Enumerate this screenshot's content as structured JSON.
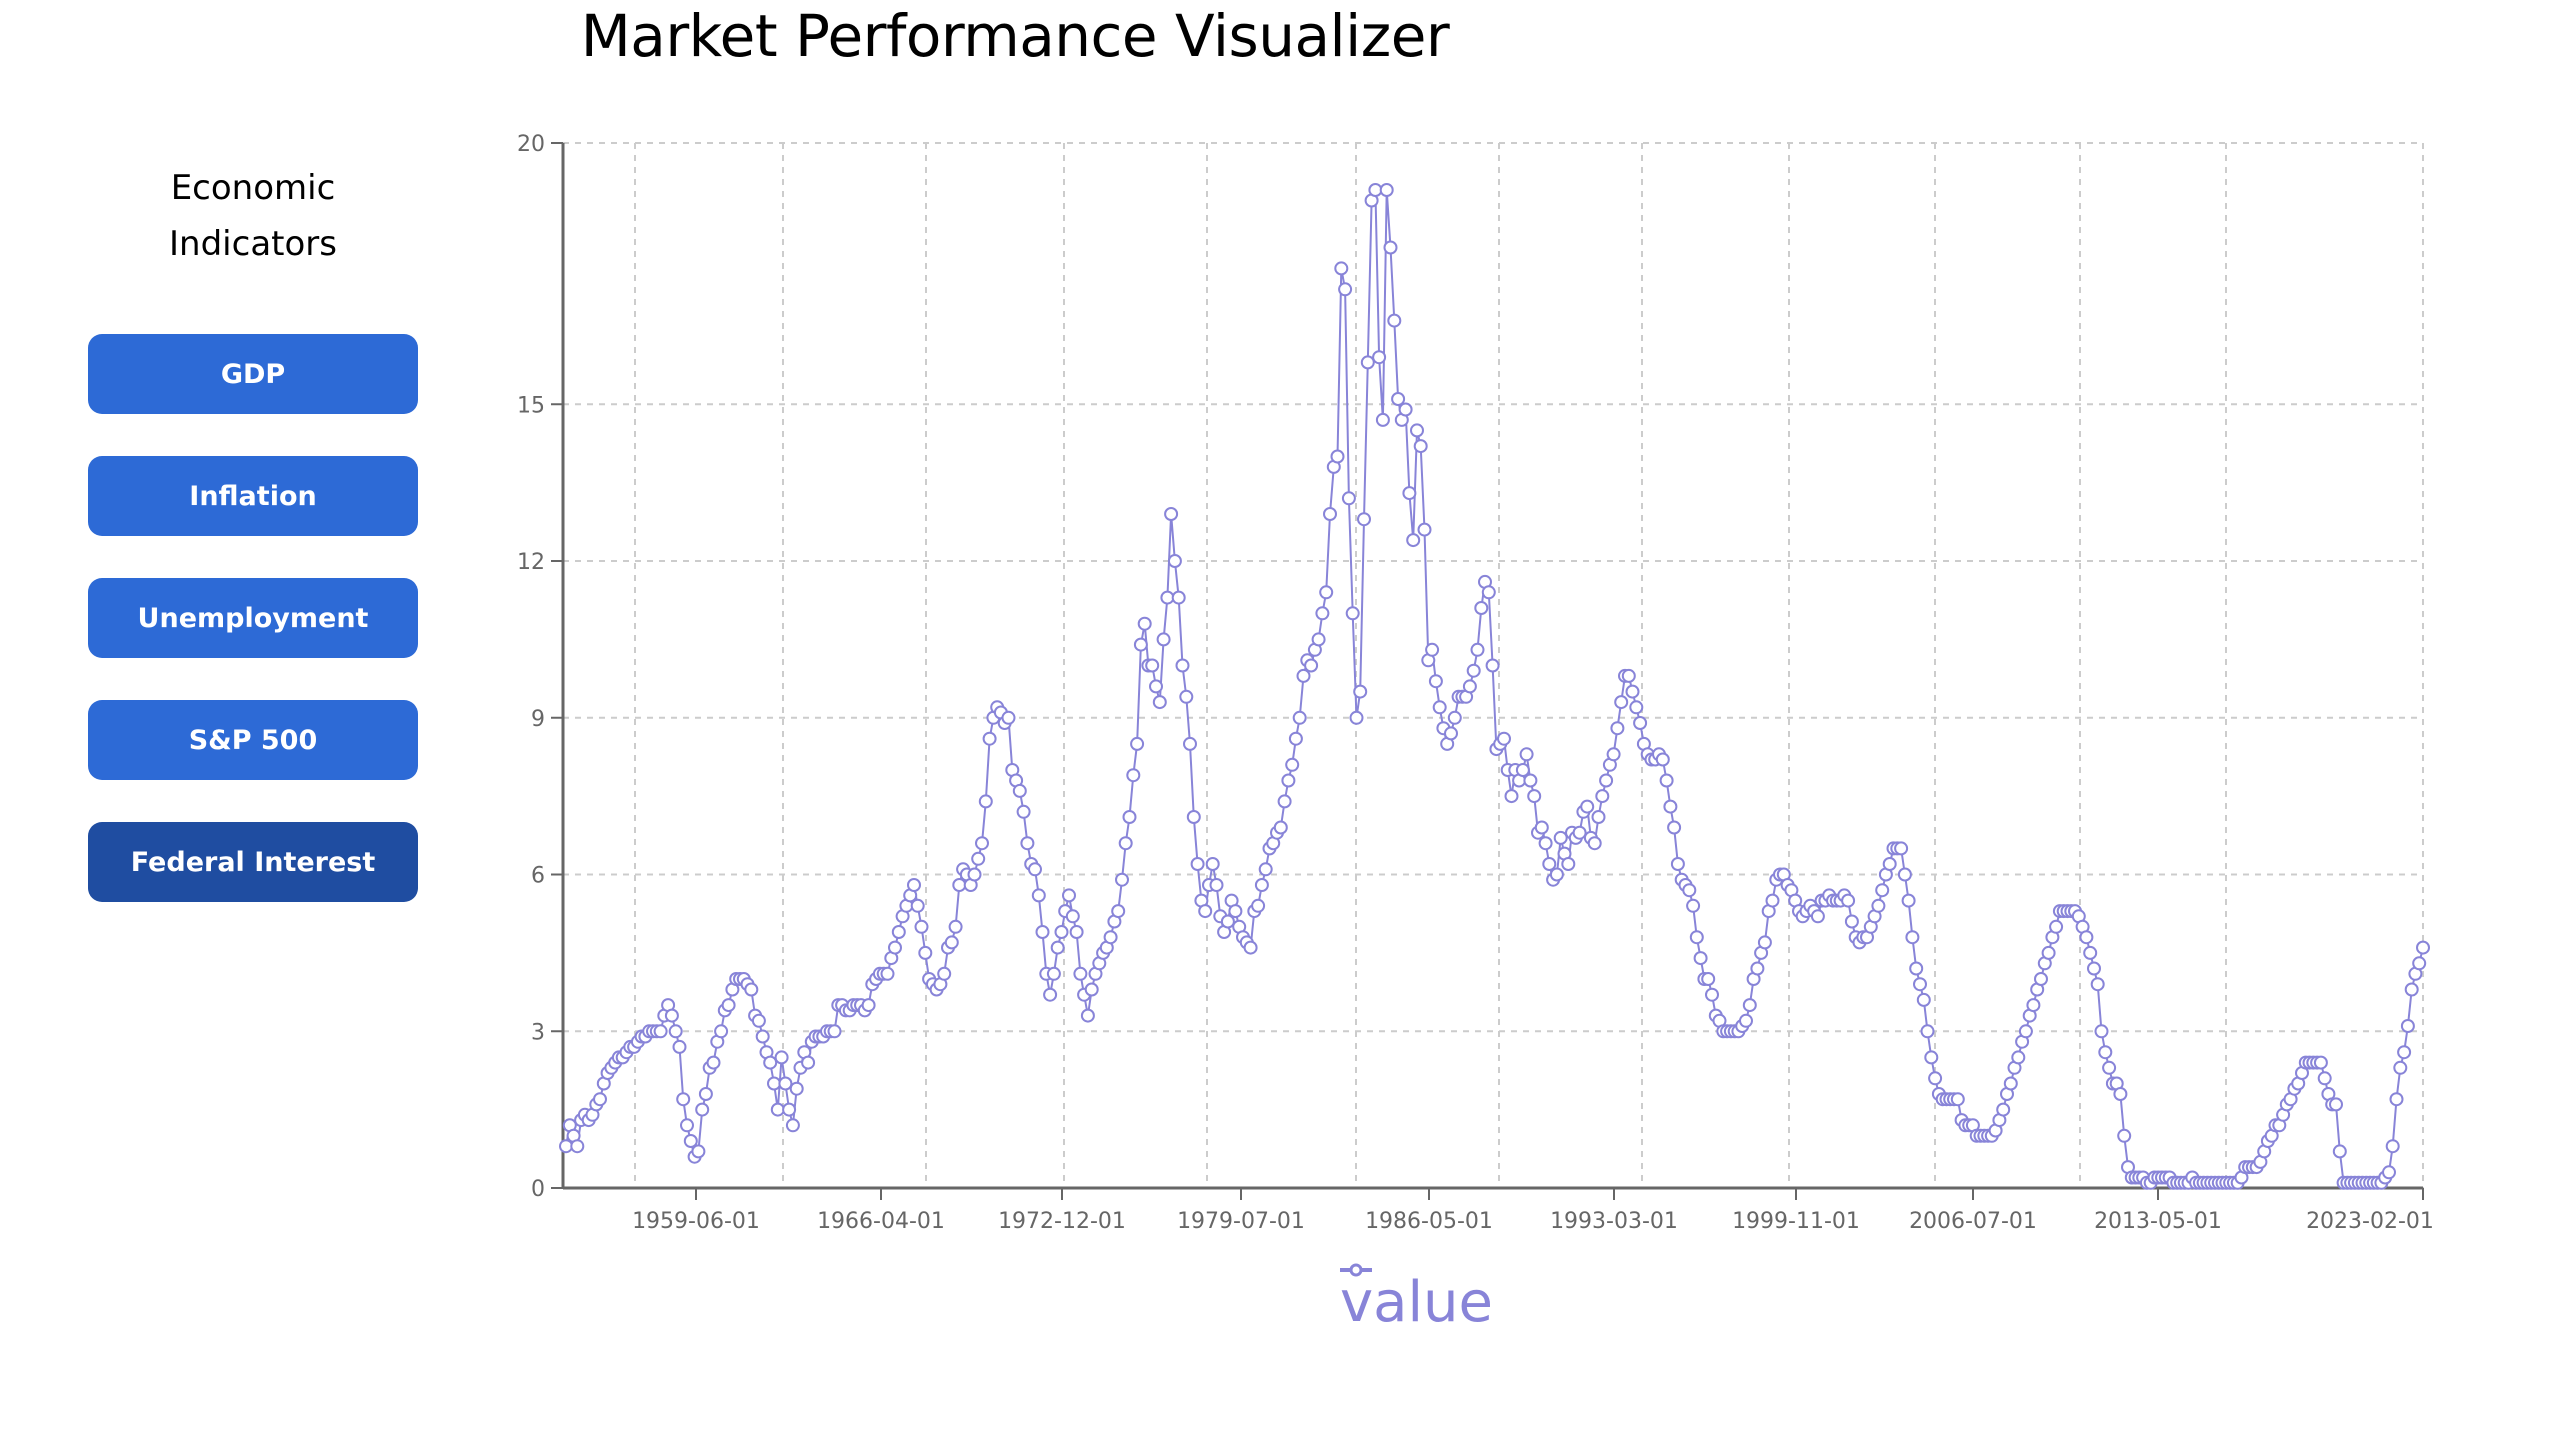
{
  "header": {
    "title": "Market Performance Visualizer"
  },
  "sidebar": {
    "title": "Economic Indicators",
    "buttons": [
      {
        "label": "GDP",
        "active": false
      },
      {
        "label": "Inflation",
        "active": false
      },
      {
        "label": "Unemployment",
        "active": false
      },
      {
        "label": "S&P 500",
        "active": false
      },
      {
        "label": "Federal Interest",
        "active": true
      }
    ]
  },
  "colors": {
    "series": "#8884d8",
    "button": "#2d6ad6",
    "button_active": "#1f4da1",
    "grid": "#cccccc",
    "axis": "#666666"
  },
  "legend": {
    "label": "value"
  },
  "chart_data": {
    "type": "line",
    "title": "",
    "xlabel": "",
    "ylabel": "",
    "ylim": [
      0,
      20
    ],
    "grid": true,
    "legend_position": "bottom",
    "y_ticks": [
      0,
      3,
      6,
      9,
      12,
      15,
      20
    ],
    "x_ticks": [
      "1959-06-01",
      "1966-04-01",
      "1972-12-01",
      "1979-07-01",
      "1986-05-01",
      "1993-03-01",
      "1999-11-01",
      "2006-07-01",
      "2013-05-01",
      "2023-02-01"
    ],
    "series": [
      {
        "name": "value",
        "x_start": "1954-07-01",
        "x_end": "2024-01-01",
        "values": [
          0.8,
          1.2,
          1.0,
          0.8,
          1.3,
          1.4,
          1.3,
          1.4,
          1.6,
          1.7,
          2.0,
          2.2,
          2.3,
          2.4,
          2.5,
          2.5,
          2.6,
          2.7,
          2.7,
          2.8,
          2.9,
          2.9,
          3.0,
          3.0,
          3.0,
          3.0,
          3.3,
          3.5,
          3.3,
          3.0,
          2.7,
          1.7,
          1.2,
          0.9,
          0.6,
          0.7,
          1.5,
          1.8,
          2.3,
          2.4,
          2.8,
          3.0,
          3.4,
          3.5,
          3.8,
          4.0,
          4.0,
          4.0,
          3.9,
          3.8,
          3.3,
          3.2,
          2.9,
          2.6,
          2.4,
          2.0,
          1.5,
          2.5,
          2.0,
          1.5,
          1.2,
          1.9,
          2.3,
          2.6,
          2.4,
          2.8,
          2.9,
          2.9,
          2.9,
          3.0,
          3.0,
          3.0,
          3.5,
          3.5,
          3.4,
          3.4,
          3.5,
          3.5,
          3.5,
          3.4,
          3.5,
          3.9,
          4.0,
          4.1,
          4.1,
          4.1,
          4.4,
          4.6,
          4.9,
          5.2,
          5.4,
          5.6,
          5.8,
          5.4,
          5.0,
          4.5,
          4.0,
          3.9,
          3.8,
          3.9,
          4.1,
          4.6,
          4.7,
          5.0,
          5.8,
          6.1,
          6.0,
          5.8,
          6.0,
          6.3,
          6.6,
          7.4,
          8.6,
          9.0,
          9.2,
          9.1,
          8.9,
          9.0,
          8.0,
          7.8,
          7.6,
          7.2,
          6.6,
          6.2,
          6.1,
          5.6,
          4.9,
          4.1,
          3.7,
          4.1,
          4.6,
          4.9,
          5.3,
          5.6,
          5.2,
          4.9,
          4.1,
          3.7,
          3.3,
          3.8,
          4.1,
          4.3,
          4.5,
          4.6,
          4.8,
          5.1,
          5.3,
          5.9,
          6.6,
          7.1,
          7.9,
          8.5,
          10.4,
          10.8,
          10.0,
          10.0,
          9.6,
          9.3,
          10.5,
          11.3,
          12.9,
          12.0,
          11.3,
          10.0,
          9.4,
          8.5,
          7.1,
          6.2,
          5.5,
          5.3,
          5.8,
          6.2,
          5.8,
          5.2,
          4.9,
          5.1,
          5.5,
          5.3,
          5.0,
          4.8,
          4.7,
          4.6,
          5.3,
          5.4,
          5.8,
          6.1,
          6.5,
          6.6,
          6.8,
          6.9,
          7.4,
          7.8,
          8.1,
          8.6,
          9.0,
          9.8,
          10.1,
          10.0,
          10.3,
          10.5,
          11.0,
          11.4,
          12.9,
          13.8,
          14.0,
          17.6,
          17.2,
          13.2,
          11.0,
          9.0,
          9.5,
          12.8,
          15.8,
          18.9,
          19.1,
          15.9,
          14.7,
          19.1,
          18.0,
          16.6,
          15.1,
          14.7,
          14.9,
          13.3,
          12.4,
          14.5,
          14.2,
          12.6,
          10.1,
          10.3,
          9.7,
          9.2,
          8.8,
          8.5,
          8.7,
          9.0,
          9.4,
          9.4,
          9.4,
          9.6,
          9.9,
          10.3,
          11.1,
          11.6,
          11.4,
          10.0,
          8.4,
          8.5,
          8.6,
          8.0,
          7.5,
          8.0,
          7.8,
          8.0,
          8.3,
          7.8,
          7.5,
          6.8,
          6.9,
          6.6,
          6.2,
          5.9,
          6.0,
          6.7,
          6.4,
          6.2,
          6.8,
          6.7,
          6.8,
          7.2,
          7.3,
          6.7,
          6.6,
          7.1,
          7.5,
          7.8,
          8.1,
          8.3,
          8.8,
          9.3,
          9.8,
          9.8,
          9.5,
          9.2,
          8.9,
          8.5,
          8.3,
          8.2,
          8.2,
          8.3,
          8.2,
          7.8,
          7.3,
          6.9,
          6.2,
          5.9,
          5.8,
          5.7,
          5.4,
          4.8,
          4.4,
          4.0,
          4.0,
          3.7,
          3.3,
          3.2,
          3.0,
          3.0,
          3.0,
          3.0,
          3.0,
          3.1,
          3.2,
          3.5,
          4.0,
          4.2,
          4.5,
          4.7,
          5.3,
          5.5,
          5.9,
          6.0,
          6.0,
          5.8,
          5.7,
          5.5,
          5.3,
          5.2,
          5.3,
          5.4,
          5.3,
          5.2,
          5.5,
          5.5,
          5.6,
          5.5,
          5.5,
          5.5,
          5.6,
          5.5,
          5.1,
          4.8,
          4.7,
          4.8,
          4.8,
          5.0,
          5.2,
          5.4,
          5.7,
          6.0,
          6.2,
          6.5,
          6.5,
          6.5,
          6.0,
          5.5,
          4.8,
          4.2,
          3.9,
          3.6,
          3.0,
          2.5,
          2.1,
          1.8,
          1.7,
          1.7,
          1.7,
          1.7,
          1.7,
          1.3,
          1.2,
          1.2,
          1.2,
          1.0,
          1.0,
          1.0,
          1.0,
          1.0,
          1.1,
          1.3,
          1.5,
          1.8,
          2.0,
          2.3,
          2.5,
          2.8,
          3.0,
          3.3,
          3.5,
          3.8,
          4.0,
          4.3,
          4.5,
          4.8,
          5.0,
          5.3,
          5.3,
          5.3,
          5.3,
          5.3,
          5.2,
          5.0,
          4.8,
          4.5,
          4.2,
          3.9,
          3.0,
          2.6,
          2.3,
          2.0,
          2.0,
          1.8,
          1.0,
          0.4,
          0.2,
          0.2,
          0.2,
          0.2,
          0.1,
          0.1,
          0.2,
          0.2,
          0.2,
          0.2,
          0.2,
          0.1,
          0.1,
          0.1,
          0.1,
          0.1,
          0.2,
          0.1,
          0.1,
          0.1,
          0.1,
          0.1,
          0.1,
          0.1,
          0.1,
          0.1,
          0.1,
          0.1,
          0.1,
          0.2,
          0.4,
          0.4,
          0.4,
          0.4,
          0.5,
          0.7,
          0.9,
          1.0,
          1.2,
          1.2,
          1.4,
          1.6,
          1.7,
          1.9,
          2.0,
          2.2,
          2.4,
          2.4,
          2.4,
          2.4,
          2.4,
          2.1,
          1.8,
          1.6,
          1.6,
          0.7,
          0.1,
          0.1,
          0.1,
          0.1,
          0.1,
          0.1,
          0.1,
          0.1,
          0.1,
          0.1,
          0.1,
          0.2,
          0.3,
          0.8,
          1.7,
          2.3,
          2.6,
          3.1,
          3.8,
          4.1,
          4.3,
          4.6
        ]
      }
    ]
  }
}
